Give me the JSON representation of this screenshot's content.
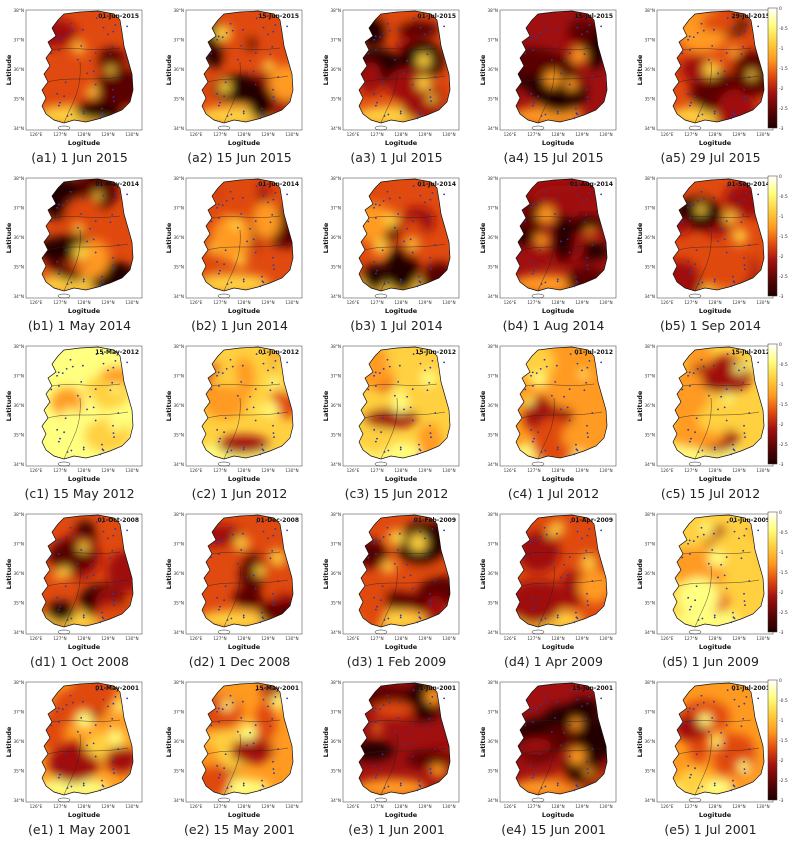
{
  "axis": {
    "xlabel": "Logitude",
    "ylabel": "Latitude",
    "xticks": [
      "126°E",
      "127°N",
      "128°N",
      "129°N",
      "130°N"
    ],
    "yticks": [
      "38°N",
      "37°N",
      "36°N",
      "35°N",
      "34°N"
    ]
  },
  "colorbar_ticks": [
    "0",
    "-0.5",
    "-1",
    "-1.5",
    "-2",
    "-2.5",
    "-3"
  ],
  "colors": {
    "scale": [
      "#ffffff",
      "#ffff80",
      "#ffd040",
      "#ff9a20",
      "#e04a10",
      "#a01010",
      "#5a0505",
      "#200000"
    ],
    "station_marker": "#2a3aa8",
    "coast": "#111111"
  },
  "rows": [
    {
      "id": "a",
      "panels": [
        {
          "date": "01-Jun-2015",
          "caption": "(a1) 1 Jun 2015",
          "severity": 0.72
        },
        {
          "date": "15-Jun-2015",
          "caption": "(a2) 15 Jun 2015",
          "severity": 0.66
        },
        {
          "date": "01-Jul-2015",
          "caption": "(a3) 1 Jul 2015",
          "severity": 0.7
        },
        {
          "date": "15-Jul-2015",
          "caption": "(a4) 15 Jul 2015",
          "severity": 0.8
        },
        {
          "date": "29-Jul-2015",
          "caption": "(a5) 29 Jul 2015",
          "severity": 0.76
        }
      ]
    },
    {
      "id": "b",
      "panels": [
        {
          "date": "01-May-2014",
          "caption": "(b1) 1 May 2014",
          "severity": 0.66
        },
        {
          "date": "01-Jun-2014",
          "caption": "(b2) 1 Jun 2014",
          "severity": 0.68
        },
        {
          "date": "01-Jul-2014",
          "caption": "(b3) 1 Jul 2014",
          "severity": 0.74
        },
        {
          "date": "01-Aug-2014",
          "caption": "(b4) 1 Aug 2014",
          "severity": 0.86
        },
        {
          "date": "01-Sep-2014",
          "caption": "(b5) 1 Sep 2014",
          "severity": 0.72
        }
      ]
    },
    {
      "id": "c",
      "panels": [
        {
          "date": "15-May-2012",
          "caption": "(c1) 15 May 2012",
          "severity": 0.22
        },
        {
          "date": "01-Jun-2012",
          "caption": "(c2) 1 Jun 2012",
          "severity": 0.4
        },
        {
          "date": "15-Jun-2012",
          "caption": "(c3) 15 Jun 2012",
          "severity": 0.48
        },
        {
          "date": "01-Jul-2012",
          "caption": "(c4) 1 Jul 2012",
          "severity": 0.58
        },
        {
          "date": "15-Jul-2012",
          "caption": "(c5) 15 Jul 2012",
          "severity": 0.38
        }
      ]
    },
    {
      "id": "d",
      "panels": [
        {
          "date": "01-Oct-2008",
          "caption": "(d1) 1 Oct 2008",
          "severity": 0.74
        },
        {
          "date": "01-Dec-2008",
          "caption": "(d2) 1 Dec 2008",
          "severity": 0.78
        },
        {
          "date": "01-Feb-2009",
          "caption": "(d3) 1 Feb 2009",
          "severity": 0.76
        },
        {
          "date": "01-Apr-2009",
          "caption": "(d4) 1 Apr 2009",
          "severity": 0.66
        },
        {
          "date": "01-Jun-2009",
          "caption": "(d5) 1 Jun 2009",
          "severity": 0.4
        }
      ]
    },
    {
      "id": "e",
      "panels": [
        {
          "date": "01-May-2001",
          "caption": "(e1) 1 May 2001",
          "severity": 0.56
        },
        {
          "date": "15-May-2001",
          "caption": "(e2) 15 May 2001",
          "severity": 0.64
        },
        {
          "date": "01-Jun-2001",
          "caption": "(e3) 1 Jun 2001",
          "severity": 0.8
        },
        {
          "date": "15-Jun-2001",
          "caption": "(e4) 15 Jun 2001",
          "severity": 0.86
        },
        {
          "date": "01-Jul-2001",
          "caption": "(e5) 1 Jul 2001",
          "severity": 0.56
        }
      ]
    }
  ]
}
